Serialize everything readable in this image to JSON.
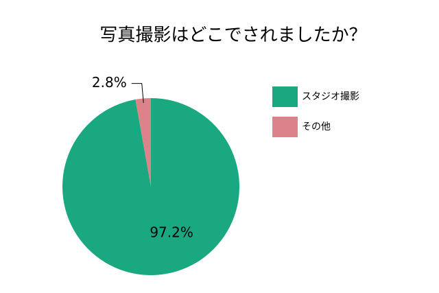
{
  "chart_data": {
    "type": "pie",
    "title": "写真撮影はどこでされましたか？",
    "categories": [
      "スタジオ撮影",
      "その他"
    ],
    "values": [
      97.2,
      2.8
    ],
    "value_labels": [
      "97.2%",
      "2.8%"
    ],
    "colors": [
      "#1aa880",
      "#dc828b"
    ],
    "legend": "right"
  }
}
